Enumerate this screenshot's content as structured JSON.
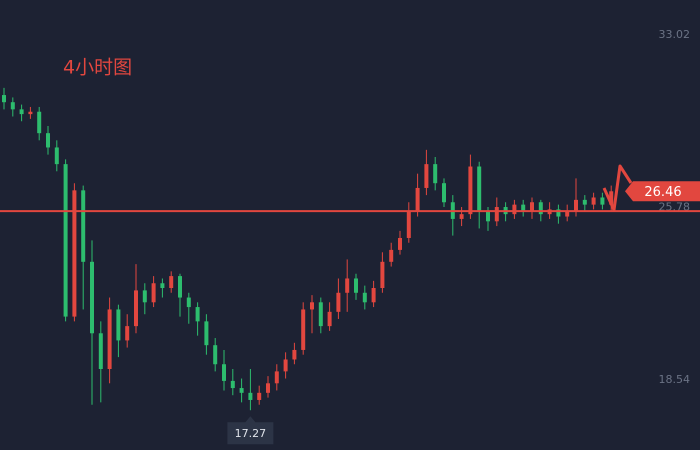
{
  "chart_data": {
    "type": "candlestick",
    "title": "4小时图",
    "open": [
      30.5,
      30.2,
      29.9,
      29.7,
      29.8,
      28.9,
      28.3,
      27.6,
      21.2,
      26.5,
      23.5,
      20.5,
      19.0,
      21.5,
      20.2,
      20.8,
      22.3,
      21.8,
      22.6,
      22.4,
      22.9,
      22.0,
      21.6,
      21.0,
      20.0,
      19.2,
      18.5,
      18.2,
      18.0,
      17.7,
      18.0,
      18.4,
      18.9,
      19.4,
      19.8,
      21.5,
      21.8,
      20.8,
      21.4,
      22.2,
      22.8,
      22.2,
      21.8,
      22.4,
      23.5,
      24.0,
      24.5,
      25.6,
      26.6,
      27.6,
      26.8,
      26.0,
      25.3,
      25.5,
      27.5,
      25.6,
      25.2,
      25.8,
      25.5,
      25.9,
      25.6,
      26.0,
      25.5,
      25.7,
      25.4,
      25.6,
      26.1,
      25.9,
      26.2,
      25.9
    ],
    "high": [
      30.8,
      30.4,
      30.1,
      30.0,
      30.0,
      29.2,
      28.6,
      27.8,
      26.8,
      26.7,
      24.4,
      21.0,
      22.0,
      21.7,
      21.3,
      23.4,
      22.6,
      22.9,
      22.8,
      23.1,
      23.0,
      22.2,
      21.8,
      21.3,
      20.3,
      19.8,
      19.0,
      18.6,
      19.0,
      18.3,
      18.7,
      19.2,
      19.7,
      20.1,
      21.8,
      22.1,
      22.0,
      21.8,
      22.8,
      23.6,
      23.0,
      22.5,
      22.7,
      23.9,
      24.3,
      24.8,
      26.0,
      27.2,
      28.2,
      27.9,
      27.0,
      26.3,
      25.8,
      28.0,
      27.7,
      25.8,
      26.2,
      26.0,
      26.1,
      26.1,
      26.2,
      26.1,
      26.0,
      25.9,
      25.9,
      27.0,
      26.3,
      26.4,
      26.4,
      26.7
    ],
    "low": [
      29.9,
      29.6,
      29.4,
      29.5,
      28.6,
      28.0,
      27.3,
      21.0,
      21.0,
      21.5,
      17.5,
      17.6,
      18.4,
      19.5,
      19.9,
      20.5,
      21.3,
      21.6,
      22.0,
      22.2,
      21.2,
      20.9,
      20.4,
      19.6,
      18.9,
      18.1,
      17.9,
      17.6,
      17.27,
      17.5,
      17.8,
      18.1,
      18.6,
      19.2,
      19.6,
      20.5,
      20.5,
      20.6,
      21.1,
      21.4,
      21.9,
      21.5,
      21.6,
      22.2,
      23.3,
      23.8,
      24.3,
      25.4,
      26.3,
      26.5,
      25.8,
      24.6,
      25.0,
      25.3,
      24.9,
      24.8,
      25.0,
      25.2,
      25.3,
      25.4,
      25.3,
      25.2,
      25.3,
      25.1,
      25.2,
      25.4,
      25.6,
      25.7,
      25.7,
      25.6
    ],
    "close": [
      30.2,
      29.9,
      29.7,
      29.8,
      28.9,
      28.3,
      27.6,
      21.2,
      26.5,
      23.5,
      20.5,
      19.0,
      21.5,
      20.2,
      20.8,
      22.3,
      21.8,
      22.6,
      22.4,
      22.9,
      22.0,
      21.6,
      21.0,
      20.0,
      19.2,
      18.5,
      18.2,
      18.0,
      17.7,
      18.0,
      18.4,
      18.9,
      19.4,
      19.8,
      21.5,
      21.8,
      20.8,
      21.4,
      22.2,
      22.8,
      22.2,
      21.8,
      22.4,
      23.5,
      24.0,
      24.5,
      25.6,
      26.6,
      27.6,
      26.8,
      26.0,
      25.3,
      25.5,
      27.5,
      25.6,
      25.2,
      25.8,
      25.5,
      25.9,
      25.6,
      26.0,
      25.5,
      25.7,
      25.4,
      25.6,
      26.1,
      25.9,
      26.2,
      25.9,
      26.46
    ],
    "ylim": [
      15.6,
      34.49
    ],
    "yticks": [
      33.02,
      25.78,
      18.54
    ],
    "hline": 25.63,
    "up_color": "#e2473f",
    "down_color": "#2dbd6e",
    "line_color": "#e2473f",
    "grid": false
  }
}
